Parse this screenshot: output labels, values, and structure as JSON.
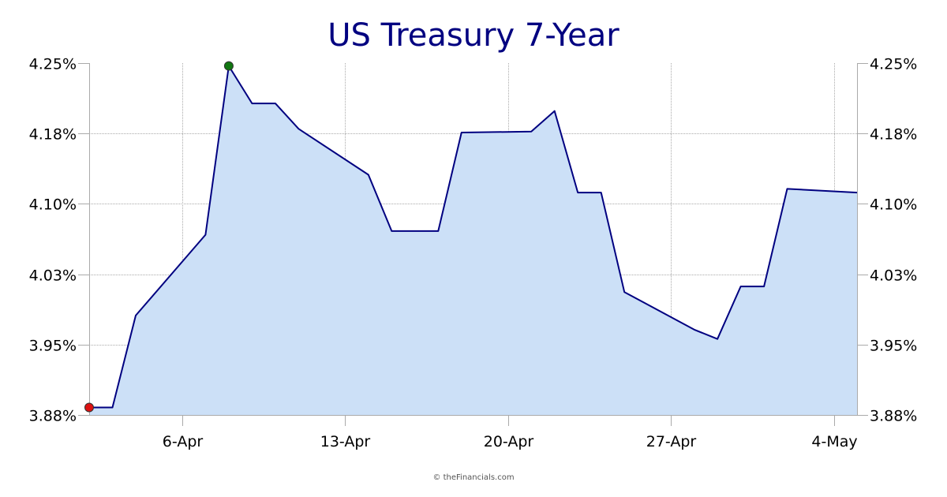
{
  "chart_data": {
    "type": "area",
    "title": "US Treasury 7-Year",
    "ylim": [
      3.88,
      4.25
    ],
    "y_ticks": [
      {
        "value": 3.88,
        "label": "3.88%"
      },
      {
        "value": 3.955,
        "label": "3.95%"
      },
      {
        "value": 4.03,
        "label": "4.03%"
      },
      {
        "value": 4.105,
        "label": "4.10%"
      },
      {
        "value": 4.18,
        "label": "4.18%"
      },
      {
        "value": 4.255,
        "label": "4.25%"
      }
    ],
    "x_range": [
      "2023-04-02",
      "2023-05-05"
    ],
    "x_ticks": [
      {
        "date": "2023-04-06",
        "label": "6-Apr"
      },
      {
        "date": "2023-04-13",
        "label": "13-Apr"
      },
      {
        "date": "2023-04-20",
        "label": "20-Apr"
      },
      {
        "date": "2023-04-27",
        "label": "27-Apr"
      },
      {
        "date": "2023-05-04",
        "label": "4-May"
      }
    ],
    "grid": true,
    "series": [
      {
        "values": [
          {
            "x": "2023-04-02",
            "y": 3.888
          },
          {
            "x": "2023-04-03",
            "y": 3.888
          },
          {
            "x": "2023-04-04",
            "y": 3.986
          },
          {
            "x": "2023-04-07",
            "y": 4.072
          },
          {
            "x": "2023-04-08",
            "y": 4.252
          },
          {
            "x": "2023-04-09",
            "y": 4.212
          },
          {
            "x": "2023-04-10",
            "y": 4.212
          },
          {
            "x": "2023-04-11",
            "y": 4.185
          },
          {
            "x": "2023-04-14",
            "y": 4.136
          },
          {
            "x": "2023-04-15",
            "y": 4.076
          },
          {
            "x": "2023-04-17",
            "y": 4.076
          },
          {
            "x": "2023-04-18",
            "y": 4.181
          },
          {
            "x": "2023-04-21",
            "y": 4.182
          },
          {
            "x": "2023-04-22",
            "y": 4.204
          },
          {
            "x": "2023-04-23",
            "y": 4.117
          },
          {
            "x": "2023-04-24",
            "y": 4.117
          },
          {
            "x": "2023-04-25",
            "y": 4.011
          },
          {
            "x": "2023-04-28",
            "y": 3.971
          },
          {
            "x": "2023-04-29",
            "y": 3.961
          },
          {
            "x": "2023-04-30",
            "y": 4.017
          },
          {
            "x": "2023-05-01",
            "y": 4.017
          },
          {
            "x": "2023-05-02",
            "y": 4.121
          },
          {
            "x": "2023-05-05",
            "y": 4.117
          }
        ]
      }
    ],
    "markers": [
      {
        "type": "low",
        "x": "2023-04-02",
        "y": 3.888,
        "color": "#dd1111"
      },
      {
        "type": "high",
        "x": "2023-04-08",
        "y": 4.252,
        "color": "#117711"
      }
    ],
    "colors": {
      "line": "#000080",
      "fill": "#cce0f7",
      "grid": "#aaaaaa",
      "title": "#000080"
    }
  },
  "credit": "© theFinancials.com"
}
